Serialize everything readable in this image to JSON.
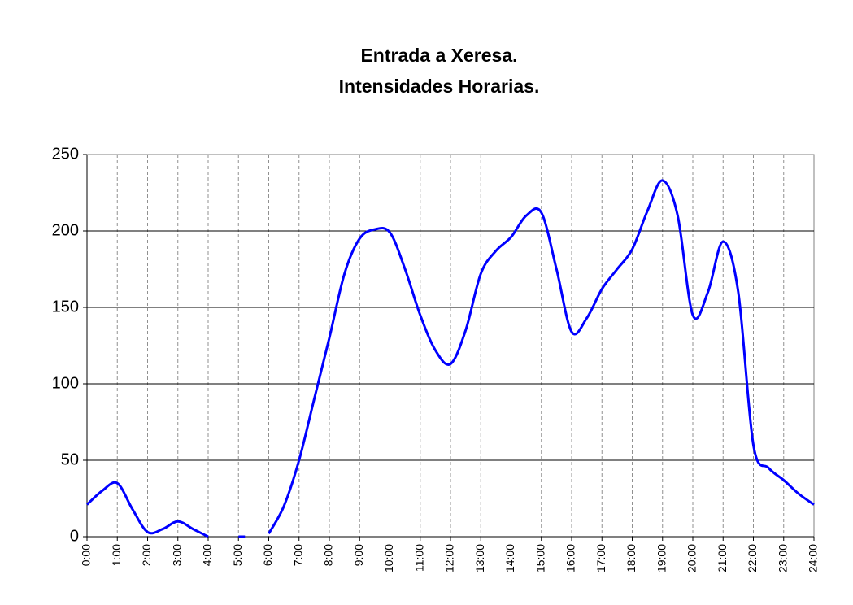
{
  "chart_data": {
    "type": "line",
    "title": "Entrada a Xeresa.",
    "subtitle": "Intensidades Horarias.",
    "categories": [
      "0:00",
      null,
      "1:00",
      null,
      "2:00",
      null,
      "3:00",
      null,
      "4:00",
      null,
      "5:00",
      null,
      "6:00",
      null,
      "7:00",
      null,
      "8:00",
      null,
      "9:00",
      null,
      "10:00",
      null,
      "11:00",
      null,
      "12:00",
      null,
      "13:00",
      null,
      "14:00",
      null,
      "15:00",
      null,
      "16:00",
      null,
      "17:00",
      null,
      "18:00",
      null,
      "19:00",
      null,
      "20:00",
      null,
      "21:00",
      null,
      "22:00",
      null,
      "23:00",
      null,
      "24:00"
    ],
    "series": [
      {
        "name": null,
        "color": "#0000ff",
        "values": [
          21,
          30,
          35,
          18,
          3,
          5,
          10,
          5,
          0,
          null,
          0,
          null,
          2,
          20,
          50,
          90,
          130,
          172,
          195,
          201,
          199,
          175,
          145,
          122,
          113,
          135,
          172,
          187,
          196,
          210,
          212,
          175,
          134,
          143,
          162,
          175,
          188,
          213,
          233,
          210,
          145,
          160,
          193,
          160,
          60,
          45,
          37,
          28,
          21
        ]
      }
    ],
    "ylim": [
      0,
      250
    ],
    "yticks": [
      0,
      50,
      100,
      150,
      200,
      250
    ],
    "grid": true
  }
}
